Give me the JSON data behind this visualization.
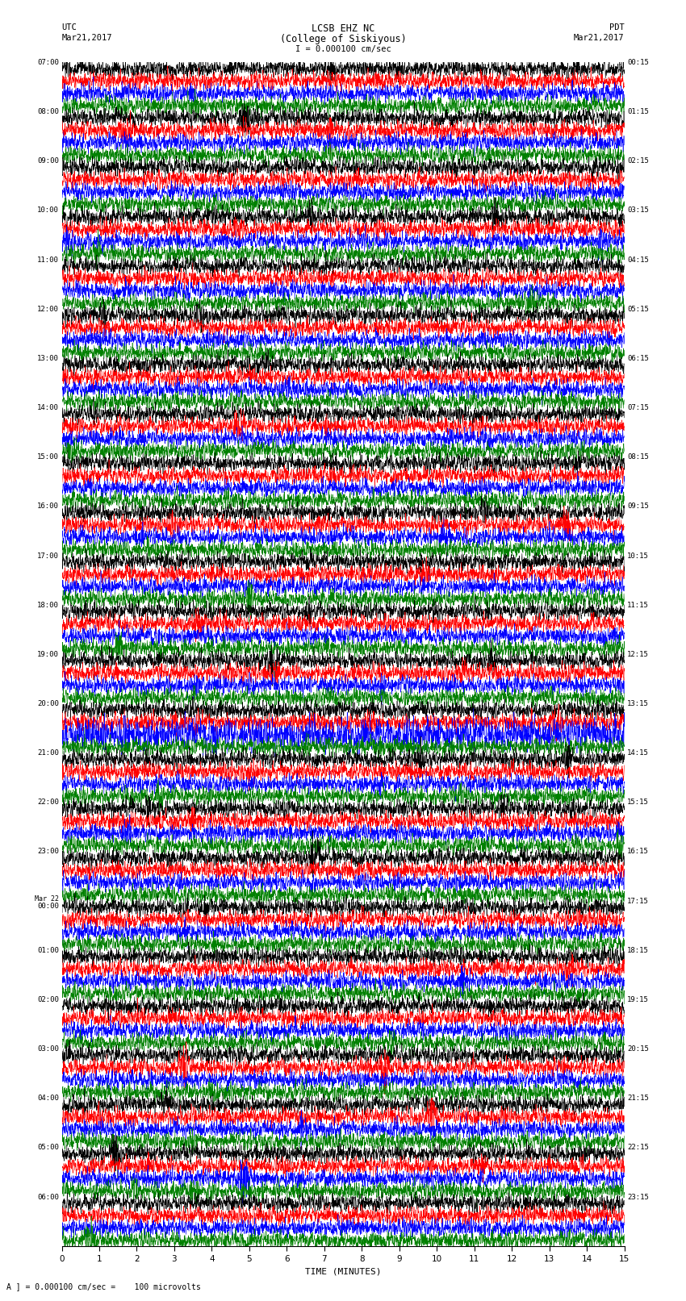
{
  "title_line1": "LCSB EHZ NC",
  "title_line2": "(College of Siskiyous)",
  "scale_text": "I = 0.000100 cm/sec",
  "left_header": "UTC",
  "left_date": "Mar21,2017",
  "right_header": "PDT",
  "right_date": "Mar21,2017",
  "xlabel": "TIME (MINUTES)",
  "footer": "A ] = 0.000100 cm/sec =    100 microvolts",
  "trace_colors": [
    "black",
    "red",
    "blue",
    "green"
  ],
  "bg_color": "white",
  "minutes": 15,
  "left_labels": [
    "07:00",
    "08:00",
    "09:00",
    "10:00",
    "11:00",
    "12:00",
    "13:00",
    "14:00",
    "15:00",
    "16:00",
    "17:00",
    "18:00",
    "19:00",
    "20:00",
    "21:00",
    "22:00",
    "23:00",
    "Mar 22\n00:00",
    "01:00",
    "02:00",
    "03:00",
    "04:00",
    "05:00",
    "06:00"
  ],
  "right_labels": [
    "00:15",
    "01:15",
    "02:15",
    "03:15",
    "04:15",
    "05:15",
    "06:15",
    "07:15",
    "08:15",
    "09:15",
    "10:15",
    "11:15",
    "12:15",
    "13:15",
    "14:15",
    "15:15",
    "16:15",
    "17:15",
    "18:15",
    "19:15",
    "20:15",
    "21:15",
    "22:15",
    "23:15"
  ],
  "n_hours": 24,
  "n_colors": 4,
  "samples_per_row": 3000,
  "seed": 42
}
